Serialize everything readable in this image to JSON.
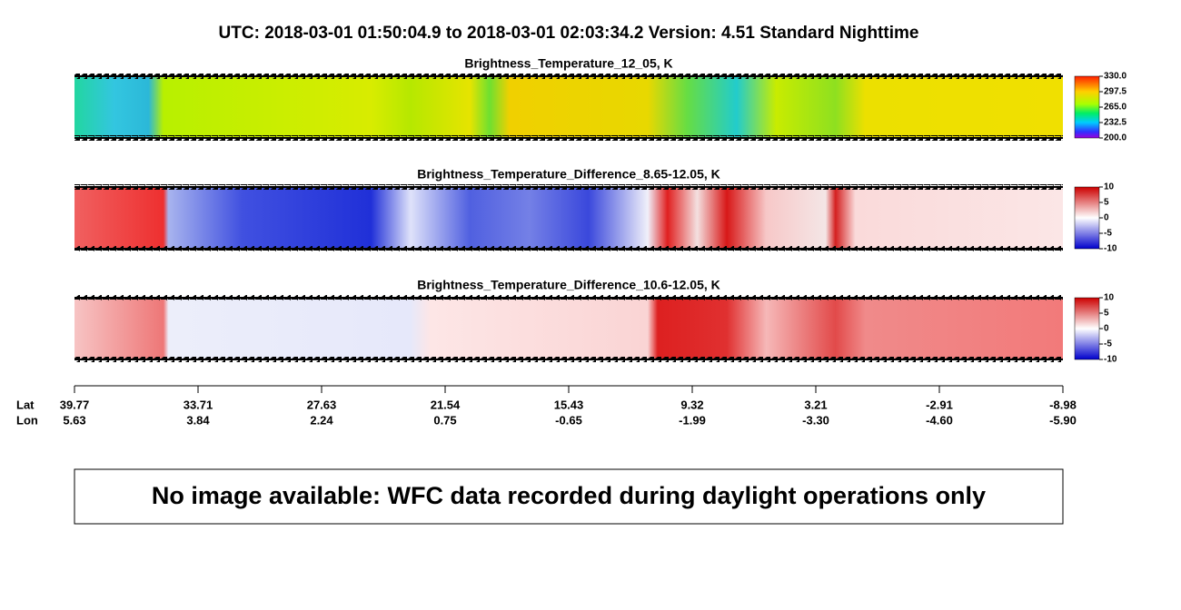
{
  "header": {
    "title": "UTC:  2018-03-01   01:50:04.9  to  2018-03-01   02:03:34.2    Version: 4.51  Standard Nighttime"
  },
  "panels": [
    {
      "title": "Brightness_Temperature_12_05, K",
      "colorbar_ticks": [
        "330.0",
        "297.5",
        "265.0",
        "232.5",
        "200.0"
      ]
    },
    {
      "title": "Brightness_Temperature_Difference_8.65-12.05, K",
      "colorbar_ticks": [
        "10",
        "5",
        "0",
        "-5",
        "-10"
      ]
    },
    {
      "title": "Brightness_Temperature_Difference_10.6-12.05, K",
      "colorbar_ticks": [
        "10",
        "5",
        "0",
        "-5",
        "-10"
      ]
    }
  ],
  "axis": {
    "lat_label": "Lat",
    "lon_label": "Lon",
    "lat": [
      "39.77",
      "33.71",
      "27.63",
      "21.54",
      "15.43",
      "9.32",
      "3.21",
      "-2.91",
      "-8.98"
    ],
    "lon": [
      "5.63",
      "3.84",
      "2.24",
      "0.75",
      "-0.65",
      "-1.99",
      "-3.30",
      "-4.60",
      "-5.90"
    ]
  },
  "notice": "No image available: WFC data recorded during daylight operations only"
}
